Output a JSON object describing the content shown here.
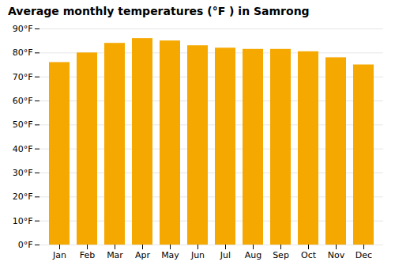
{
  "chart_data": {
    "type": "bar",
    "title": "Average monthly temperatures (°F ) in Samrong",
    "categories": [
      "Jan",
      "Feb",
      "Mar",
      "Apr",
      "May",
      "Jun",
      "Jul",
      "Aug",
      "Sep",
      "Oct",
      "Nov",
      "Dec"
    ],
    "values": [
      76,
      80,
      84,
      86,
      85,
      83,
      82,
      81.5,
      81.5,
      80.5,
      78,
      75
    ],
    "color": "#F5A800",
    "ylim": [
      0,
      90
    ],
    "yticks": [
      {
        "value": 0,
        "label": "0°F"
      },
      {
        "value": 10,
        "label": "10°F"
      },
      {
        "value": 20,
        "label": "20°F"
      },
      {
        "value": 30,
        "label": "30°F"
      },
      {
        "value": 40,
        "label": "40°F"
      },
      {
        "value": 50,
        "label": "50°F"
      },
      {
        "value": 60,
        "label": "60°F"
      },
      {
        "value": 70,
        "label": "70°F"
      },
      {
        "value": 80,
        "label": "80°F"
      },
      {
        "value": 90,
        "label": "90°F"
      }
    ],
    "grid": true
  }
}
